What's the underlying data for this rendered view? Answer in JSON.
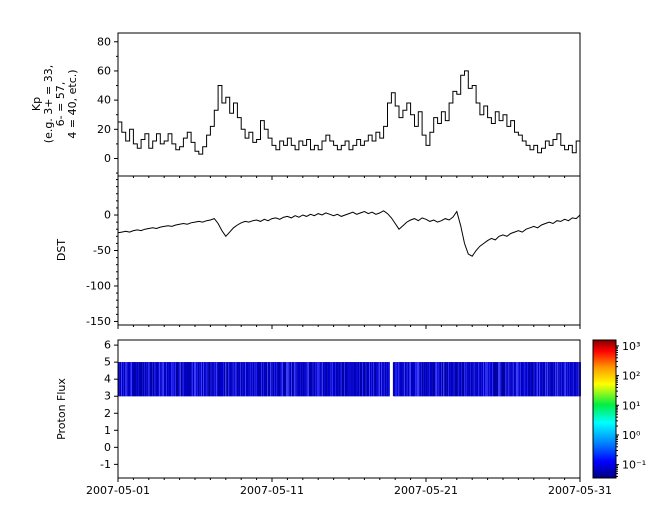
{
  "figure": {
    "background": "#ffffff",
    "line_color": "#000000"
  },
  "xaxis": {
    "xlim": [
      0,
      30
    ],
    "tick_days": [
      0,
      10,
      20,
      30
    ],
    "minor_step_days": 1,
    "tick_labels": [
      "2007-05-01",
      "2007-05-11",
      "2007-05-21",
      "2007-05-31"
    ]
  },
  "chart_data": [
    {
      "type": "line",
      "style": "step",
      "name": "kp-index",
      "ylabel_lines": [
        "Kp",
        "(e.g. 3+ = 33,",
        "6- = 57,",
        "4 = 40, etc.)"
      ],
      "ylim": [
        -12,
        86
      ],
      "yticks": [
        0,
        20,
        40,
        60,
        80
      ],
      "minor_step": 10,
      "x_start": 0,
      "x_step": 0.25,
      "values": [
        25,
        18,
        12,
        20,
        10,
        7,
        13,
        17,
        7,
        12,
        17,
        10,
        12,
        17,
        10,
        6,
        8,
        14,
        18,
        11,
        5,
        3,
        8,
        16,
        22,
        33,
        50,
        38,
        42,
        31,
        38,
        28,
        20,
        14,
        18,
        11,
        13,
        26,
        20,
        14,
        9,
        6,
        12,
        9,
        14,
        9,
        6,
        12,
        9,
        13,
        6,
        9,
        6,
        12,
        16,
        12,
        9,
        6,
        9,
        12,
        6,
        9,
        13,
        9,
        12,
        16,
        12,
        18,
        14,
        22,
        38,
        45,
        36,
        28,
        33,
        38,
        30,
        22,
        32,
        16,
        9,
        18,
        28,
        24,
        32,
        26,
        38,
        46,
        44,
        57,
        60,
        48,
        50,
        38,
        30,
        36,
        28,
        24,
        32,
        26,
        30,
        22,
        26,
        18,
        16,
        12,
        9,
        6,
        9,
        4,
        7,
        12,
        9,
        13,
        17,
        9,
        6,
        9,
        4,
        12,
        24
      ]
    },
    {
      "type": "line",
      "style": "linear",
      "name": "dst-index",
      "ylabel": "DST",
      "ylim": [
        -155,
        55
      ],
      "yticks": [
        0,
        -50,
        -100,
        -150
      ],
      "minor_step": 10,
      "x_start": 0,
      "x_step": 0.25,
      "values": [
        -25,
        -24,
        -23,
        -24,
        -22,
        -21,
        -22,
        -20,
        -19,
        -18,
        -19,
        -17,
        -16,
        -15,
        -16,
        -14,
        -13,
        -12,
        -13,
        -11,
        -10,
        -9,
        -10,
        -8,
        -7,
        -5,
        -12,
        -22,
        -30,
        -24,
        -18,
        -14,
        -11,
        -9,
        -10,
        -8,
        -7,
        -9,
        -6,
        -8,
        -5,
        -4,
        -6,
        -3,
        -2,
        -4,
        -1,
        -3,
        0,
        -2,
        1,
        -1,
        2,
        0,
        3,
        1,
        -1,
        1,
        -2,
        0,
        2,
        4,
        1,
        3,
        5,
        2,
        4,
        1,
        3,
        6,
        2,
        -4,
        -12,
        -20,
        -15,
        -10,
        -7,
        -5,
        -8,
        -4,
        -6,
        -9,
        -7,
        -10,
        -8,
        -5,
        -7,
        -3,
        5,
        -15,
        -40,
        -55,
        -58,
        -50,
        -44,
        -40,
        -36,
        -33,
        -35,
        -30,
        -28,
        -30,
        -26,
        -24,
        -22,
        -24,
        -20,
        -18,
        -16,
        -18,
        -14,
        -12,
        -10,
        -12,
        -8,
        -9,
        -6,
        -8,
        -4,
        -5,
        0
      ]
    },
    {
      "type": "heatmap",
      "name": "proton-flux",
      "ylabel": "Proton Flux",
      "ylim": [
        -1.8,
        6.3
      ],
      "yticks": [
        6,
        5,
        4,
        3,
        2,
        1,
        0,
        -1
      ],
      "band": {
        "y_bottom": 3,
        "y_top": 5,
        "x_start": 0,
        "x_end": 30,
        "gap_start": 17.65,
        "gap_end": 17.85,
        "base_color": "#0000bb",
        "striation_colors": [
          "#0000b4",
          "#0a0ad2",
          "#1e1ee6",
          "#0000c8",
          "#2d2df0",
          "#00009b",
          "#1414cc",
          "#0000b4",
          "#0808c0",
          "#3c3cf5"
        ]
      },
      "colorbar": {
        "scale": "log10",
        "exp_top": 3.2,
        "exp_bottom": -1.45,
        "tick_exps": [
          3,
          2,
          1,
          0,
          -1
        ],
        "tick_labels": [
          "10³",
          "10²",
          "10¹",
          "10⁰",
          "10⁻¹"
        ],
        "gradient": [
          {
            "offset": 0.0,
            "color": "#800000"
          },
          {
            "offset": 0.08,
            "color": "#ff0000"
          },
          {
            "offset": 0.2,
            "color": "#ff9900"
          },
          {
            "offset": 0.32,
            "color": "#ffff00"
          },
          {
            "offset": 0.47,
            "color": "#00ee44"
          },
          {
            "offset": 0.6,
            "color": "#00ffff"
          },
          {
            "offset": 0.75,
            "color": "#0080ff"
          },
          {
            "offset": 0.88,
            "color": "#0000ff"
          },
          {
            "offset": 1.0,
            "color": "#000080"
          }
        ]
      }
    }
  ]
}
